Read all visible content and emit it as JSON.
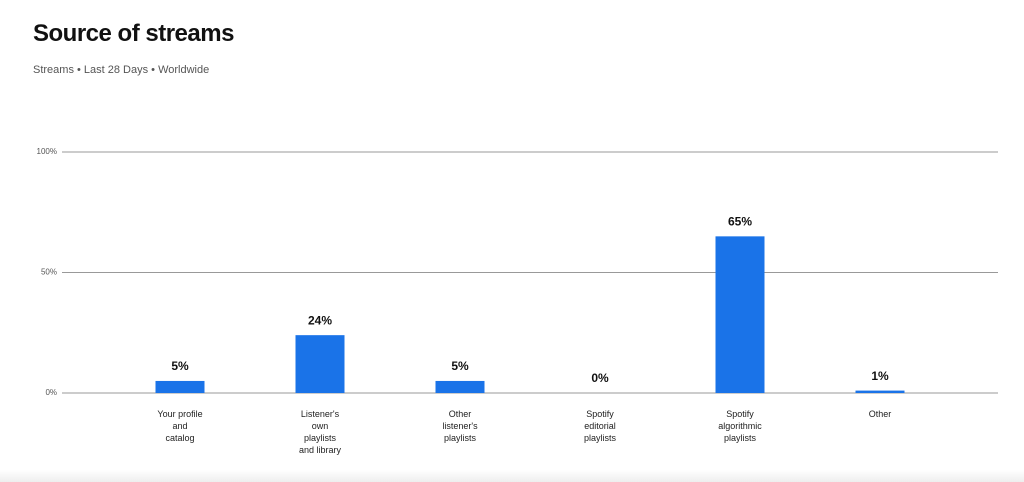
{
  "chart_data": {
    "type": "bar",
    "title": "Source of streams",
    "subtitle": "Streams • Last 28 Days • Worldwide",
    "categories": [
      "Your profile\nand\ncatalog",
      "Listener's\nown\nplaylists\nand library",
      "Other\nlistener's\nplaylists",
      "Spotify\neditorial\nplaylists",
      "Spotify\nalgorithmic\nplaylists",
      "Other"
    ],
    "values": [
      5,
      24,
      5,
      0,
      65,
      1
    ],
    "value_labels": [
      "5%",
      "24%",
      "5%",
      "0%",
      "65%",
      "1%"
    ],
    "color": "#1a73e8",
    "ylim": [
      0,
      100
    ],
    "yticks": [
      {
        "value": 0,
        "label": "0%"
      },
      {
        "value": 50,
        "label": "50%"
      },
      {
        "value": 100,
        "label": "100%"
      }
    ],
    "grid": true
  }
}
